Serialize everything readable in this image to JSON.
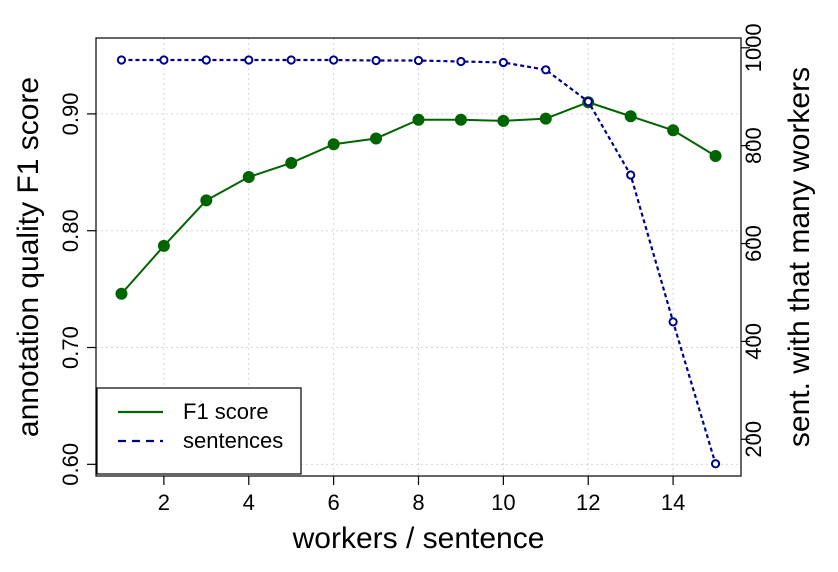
{
  "chart_data": {
    "type": "line",
    "x": [
      1,
      2,
      3,
      4,
      5,
      6,
      7,
      8,
      9,
      10,
      11,
      12,
      13,
      14,
      15
    ],
    "xlabel": "workers / sentence",
    "ylabel_left": "annotation quality F1 score",
    "ylabel_right": "sent. with that many workers",
    "xlim": [
      0.4,
      15.6
    ],
    "ylim_left": [
      0.59,
      0.965
    ],
    "ylim_right": [
      125,
      1020
    ],
    "xticks": [
      "2",
      "4",
      "6",
      "8",
      "10",
      "12",
      "14"
    ],
    "yticks_left": [
      "0.60",
      "0.70",
      "0.80",
      "0.90"
    ],
    "yticks_right": [
      "200",
      "400",
      "600",
      "800",
      "1000"
    ],
    "grid": true,
    "legend_position": "bottom-left",
    "series": [
      {
        "name": "F1 score",
        "axis": "left",
        "color": "#006400",
        "line_style": "solid",
        "marker": "filled-circle",
        "values": [
          0.746,
          0.787,
          0.826,
          0.846,
          0.858,
          0.874,
          0.879,
          0.895,
          0.895,
          0.894,
          0.896,
          0.91,
          0.898,
          0.886,
          0.864
        ]
      },
      {
        "name": "sentences",
        "axis": "right",
        "color": "#00008b",
        "line_style": "dashed",
        "marker": "open-circle",
        "values": [
          975,
          975,
          975,
          975,
          975,
          975,
          974,
          974,
          972,
          970,
          955,
          890,
          740,
          440,
          150
        ]
      }
    ]
  }
}
